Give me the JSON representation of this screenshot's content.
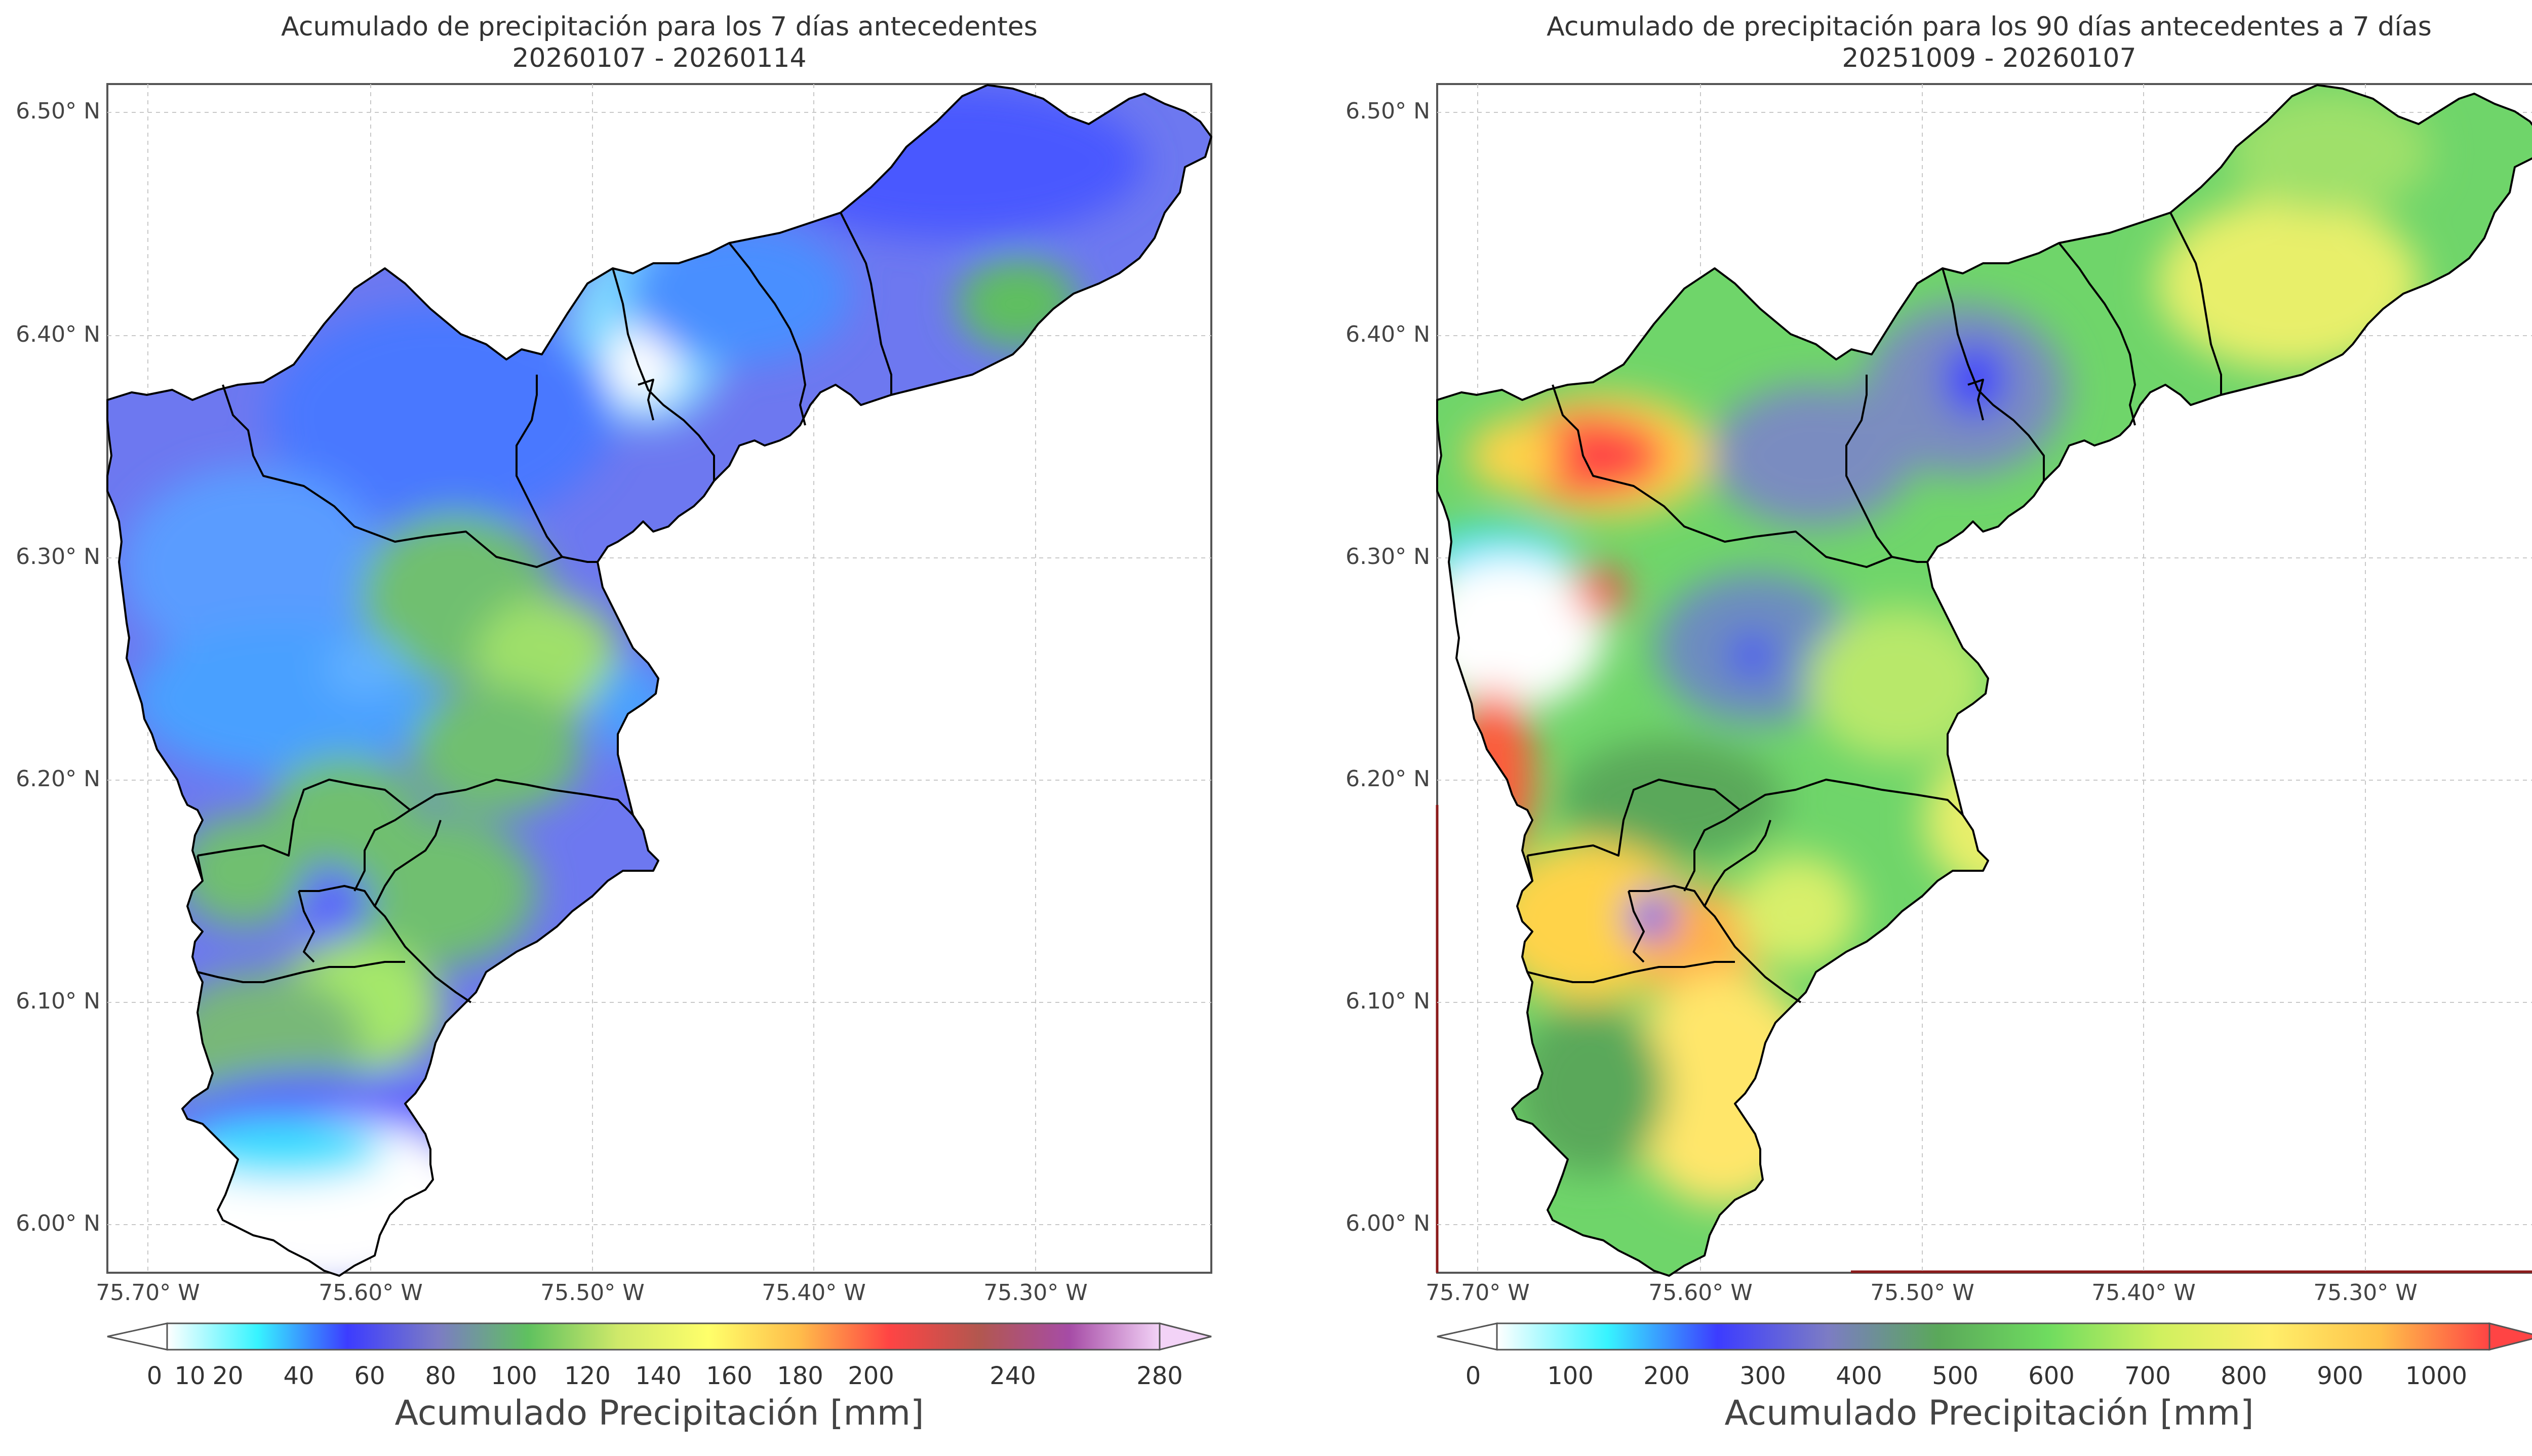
{
  "maps": [
    {
      "title_line1": "Acumulado de precipitación para los 7 días antecedentes",
      "title_line2": "20260107 - 20260114",
      "colorbar_label": "Acumulado Precipitación [mm]",
      "colorbar_ticks": [
        "0",
        "10",
        "20",
        "40",
        "60",
        "80",
        "100",
        "120",
        "140",
        "160",
        "180",
        "200",
        "240",
        "280"
      ],
      "colorbar_colors": [
        "#ffffff",
        "#37f4ff",
        "#3c3cff",
        "#7c7cc4",
        "#5fc15f",
        "#cfe96a",
        "#ffff6a",
        "#ffbd4a",
        "#ff4444",
        "#b2574f",
        "#a64ca6",
        "#f3d3f7"
      ]
    },
    {
      "title_line1": "Acumulado de precipitación para los 90 días antecedentes a 7 días",
      "title_line2": "20251009 - 20260107",
      "colorbar_label": "Acumulado Precipitación [mm]",
      "colorbar_ticks": [
        "0",
        "100",
        "200",
        "300",
        "400",
        "500",
        "600",
        "700",
        "800",
        "900",
        "1000"
      ],
      "colorbar_colors": [
        "#ffffff",
        "#37f4ff",
        "#3c3cff",
        "#7c7cc4",
        "#5aa85a",
        "#6fdc5f",
        "#cff05f",
        "#ffef6a",
        "#ffc24a",
        "#ff4444"
      ]
    }
  ],
  "lat_ticks": [
    "6.50° N",
    "6.40° N",
    "6.30° N",
    "6.20° N",
    "6.10° N",
    "6.00° N"
  ],
  "lon_ticks": [
    "75.70° W",
    "75.60° W",
    "75.50° W",
    "75.40° W",
    "75.30° W"
  ]
}
